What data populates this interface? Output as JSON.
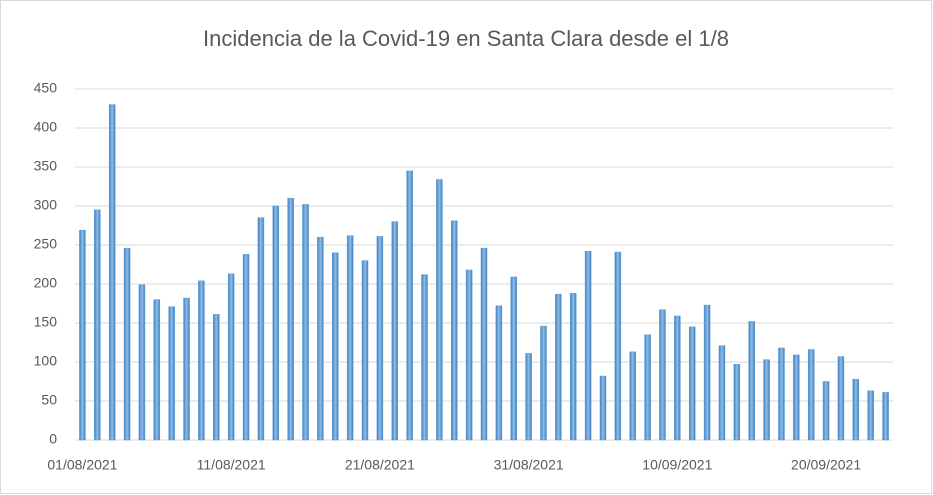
{
  "chart_data": {
    "type": "bar",
    "title": "Incidencia de la Covid-19 en Santa Clara desde el 1/8",
    "categories": [
      "01/08/2021",
      null,
      null,
      null,
      null,
      null,
      null,
      null,
      null,
      null,
      "11/08/2021",
      null,
      null,
      null,
      null,
      null,
      null,
      null,
      null,
      null,
      "21/08/2021",
      null,
      null,
      null,
      null,
      null,
      null,
      null,
      null,
      null,
      "31/08/2021",
      null,
      null,
      null,
      null,
      null,
      null,
      null,
      null,
      null,
      "10/09/2021",
      null,
      null,
      null,
      null,
      null,
      null,
      null,
      null,
      null,
      "20/09/2021",
      null,
      null,
      null,
      null
    ],
    "values": [
      269,
      295,
      430,
      246,
      199,
      180,
      171,
      182,
      204,
      161,
      213,
      238,
      285,
      300,
      310,
      302,
      260,
      240,
      262,
      230,
      261,
      280,
      345,
      212,
      334,
      281,
      218,
      246,
      172,
      209,
      111,
      146,
      187,
      188,
      242,
      82,
      241,
      113,
      135,
      167,
      159,
      145,
      173,
      121,
      97,
      152,
      103,
      118,
      109,
      116,
      75,
      107,
      78,
      63,
      61
    ],
    "color": "#5b9bd5",
    "ylim": [
      0,
      450
    ],
    "yticks": [
      0,
      50,
      100,
      150,
      200,
      250,
      300,
      350,
      400,
      450
    ],
    "grid": true
  }
}
